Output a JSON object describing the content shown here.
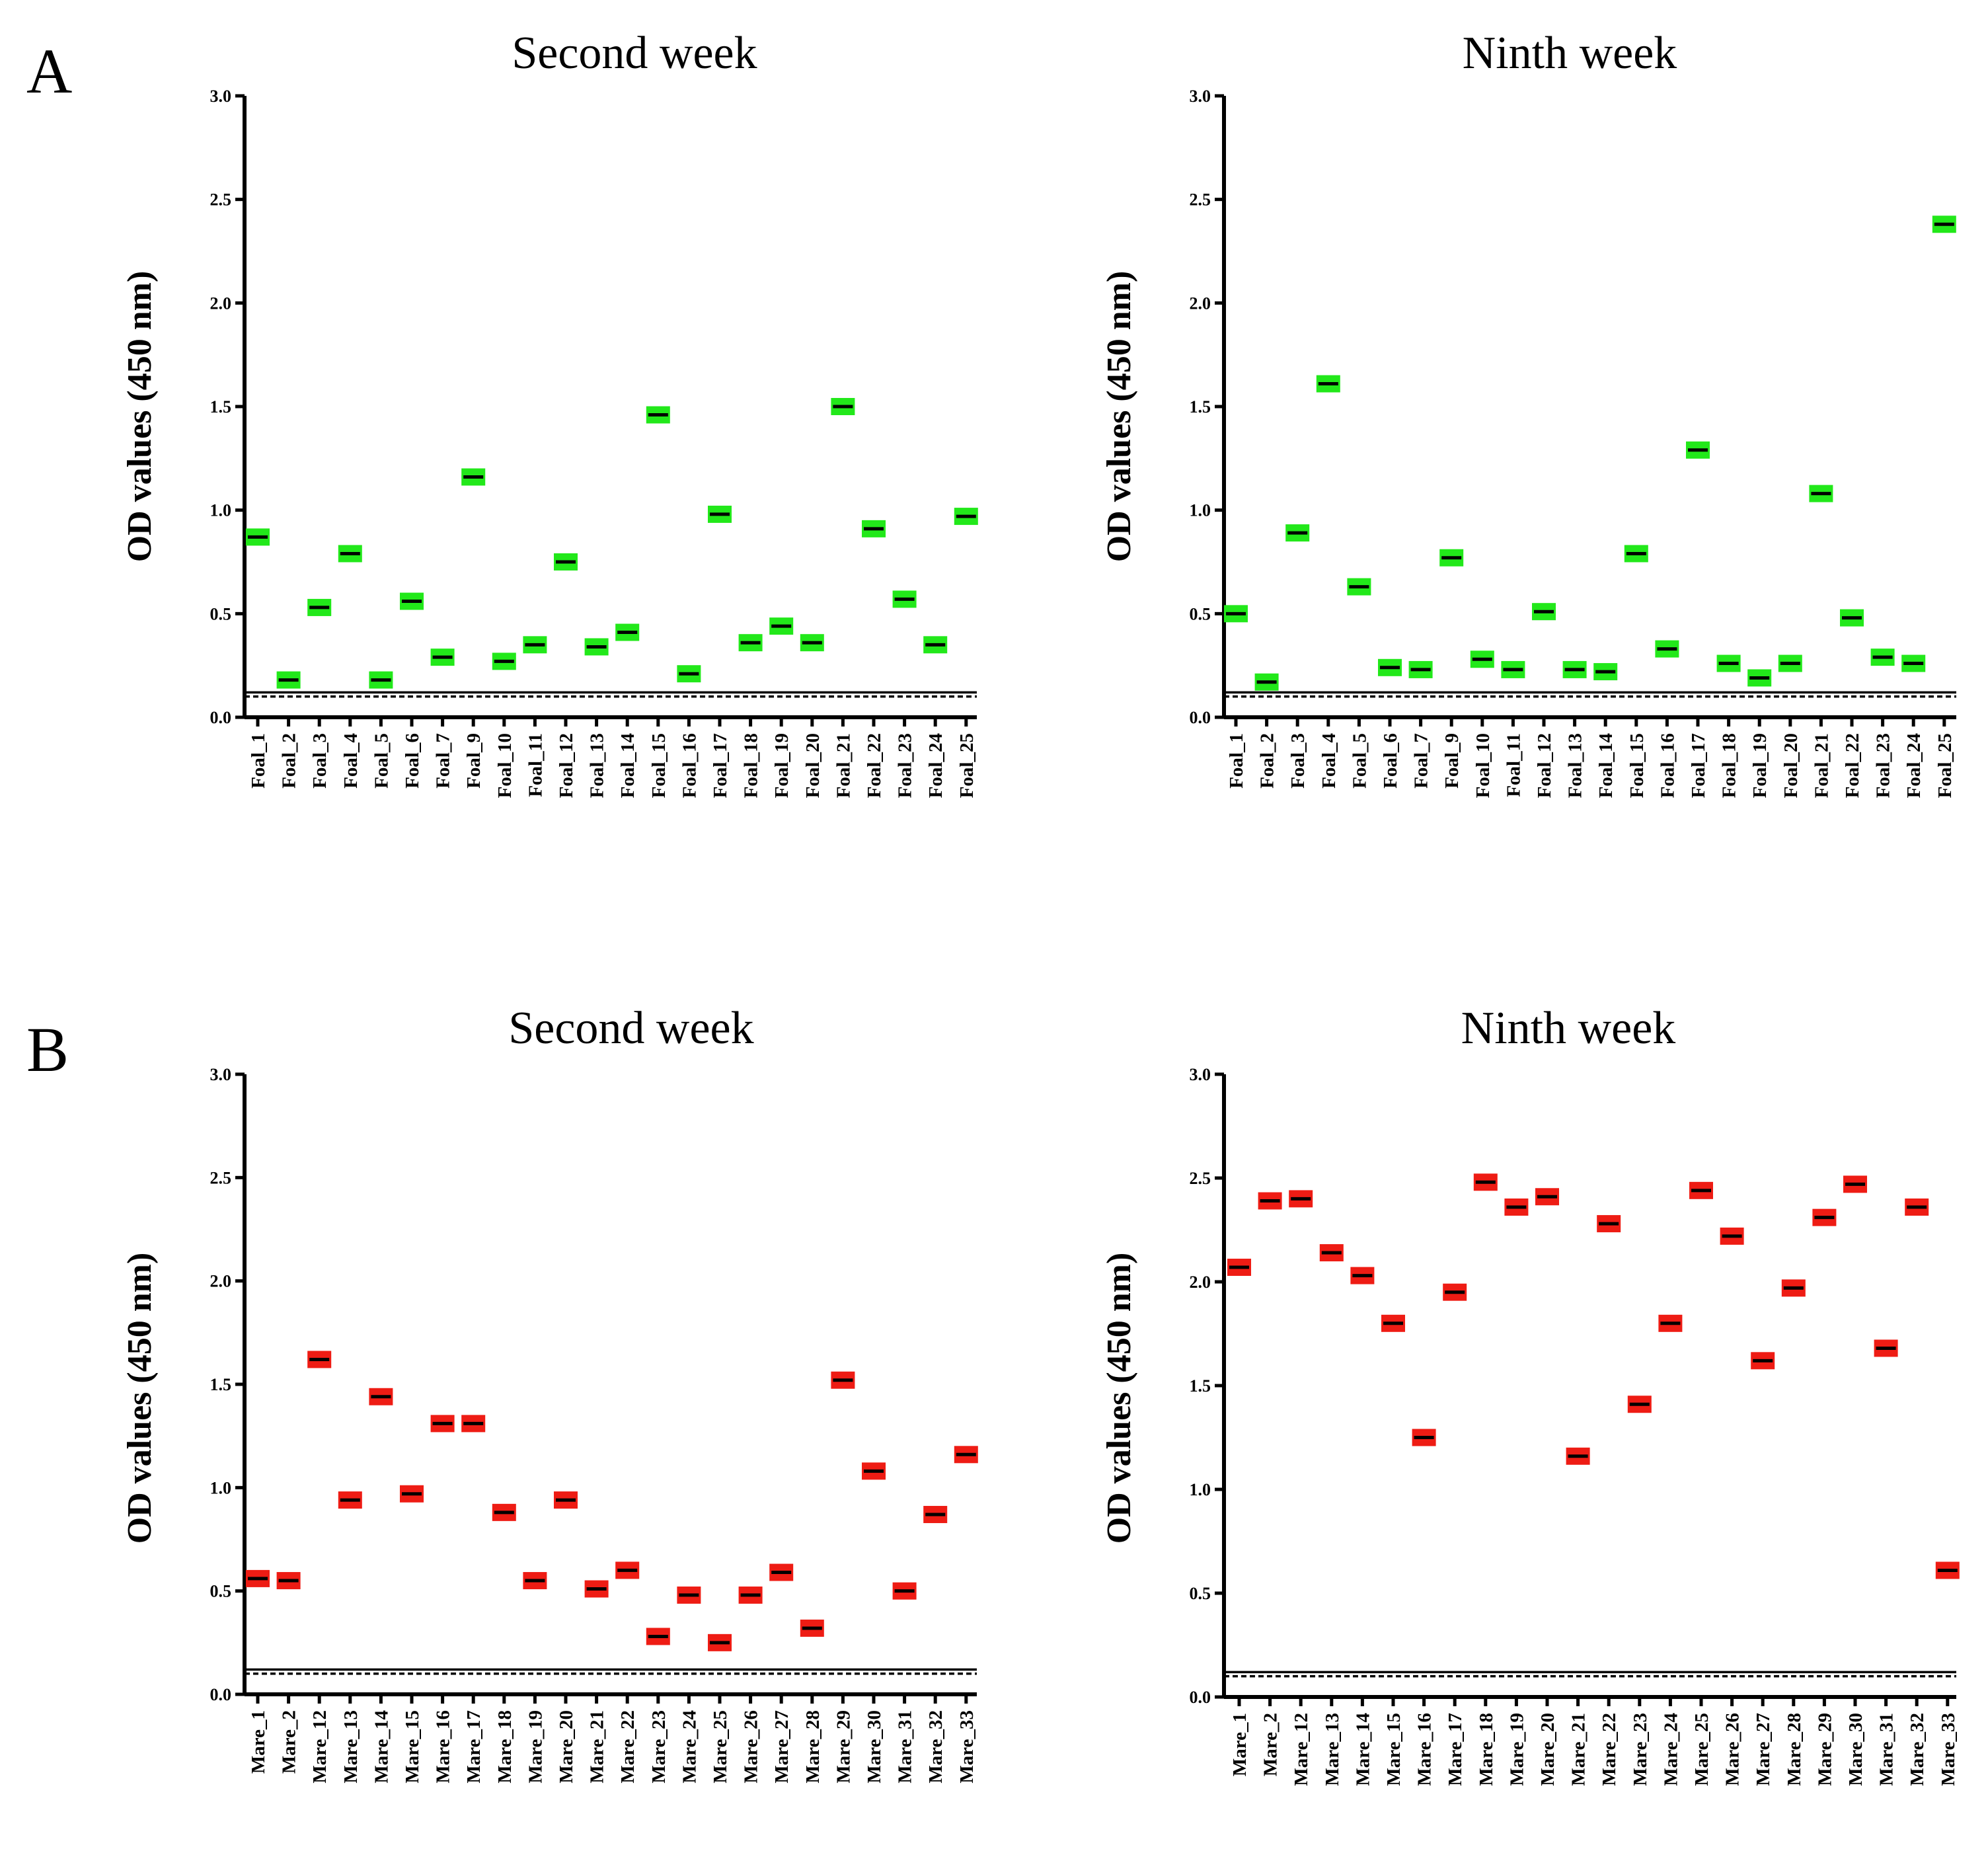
{
  "panel_labels": [
    "A",
    "B"
  ],
  "colors": {
    "foal": "#22e81a",
    "mare": "#ee1c14",
    "mean_line": "#000000",
    "axis": "#000000"
  },
  "chart_data": [
    {
      "type": "scatter",
      "panel": "A",
      "title": "Second week",
      "xlabel": "",
      "ylabel": "OD values (450 nm)",
      "ylim": [
        0,
        3
      ],
      "yticks": [
        "0.0",
        "0.5",
        "1.0",
        "1.5",
        "2.0",
        "2.5",
        "3.0"
      ],
      "cutoff_lines": [
        0.12,
        0.1
      ],
      "categories": [
        "Foal_1",
        "Foal_2",
        "Foal_3",
        "Foal_4",
        "Foal_5",
        "Foal_6",
        "Foal_7",
        "Foal_9",
        "Foal_10",
        "Foal_11",
        "Foal_12",
        "Foal_13",
        "Foal_14",
        "Foal_15",
        "Foal_16",
        "Foal_17",
        "Foal_18",
        "Foal_19",
        "Foal_20",
        "Foal_21",
        "Foal_22",
        "Foal_23",
        "Foal_24",
        "Foal_25"
      ],
      "values": [
        0.87,
        0.18,
        0.53,
        0.79,
        0.18,
        0.56,
        0.29,
        1.16,
        0.27,
        0.35,
        0.75,
        0.34,
        0.41,
        1.46,
        0.21,
        0.98,
        0.36,
        0.44,
        0.36,
        1.5,
        0.91,
        0.57,
        0.35,
        0.97
      ],
      "color_key": "foal"
    },
    {
      "type": "scatter",
      "panel": "A",
      "title": "Ninth week",
      "xlabel": "",
      "ylabel": "OD values (450 nm)",
      "ylim": [
        0,
        3
      ],
      "yticks": [
        "0.0",
        "0.5",
        "1.0",
        "1.5",
        "2.0",
        "2.5",
        "3.0"
      ],
      "cutoff_lines": [
        0.12,
        0.1
      ],
      "categories": [
        "Foal_1",
        "Foal_2",
        "Foal_3",
        "Foal_4",
        "Foal_5",
        "Foal_6",
        "Foal_7",
        "Foal_9",
        "Foal_10",
        "Foal_11",
        "Foal_12",
        "Foal_13",
        "Foal_14",
        "Foal_15",
        "Foal_16",
        "Foal_17",
        "Foal_18",
        "Foal_19",
        "Foal_20",
        "Foal_21",
        "Foal_22",
        "Foal_23",
        "Foal_24",
        "Foal_25"
      ],
      "values": [
        0.5,
        0.17,
        0.89,
        1.61,
        0.63,
        0.24,
        0.23,
        0.77,
        0.28,
        0.23,
        0.51,
        0.23,
        0.22,
        0.79,
        0.33,
        1.29,
        0.26,
        0.19,
        0.26,
        1.08,
        0.48,
        0.29,
        0.26,
        2.38
      ],
      "color_key": "foal"
    },
    {
      "type": "scatter",
      "panel": "B",
      "title": "Second week",
      "xlabel": "",
      "ylabel": "OD values (450 nm)",
      "ylim": [
        0,
        3
      ],
      "yticks": [
        "0.0",
        "0.5",
        "1.0",
        "1.5",
        "2.0",
        "2.5",
        "3.0"
      ],
      "cutoff_lines": [
        0.12,
        0.1
      ],
      "categories": [
        "Mare_1",
        "Mare_2",
        "Mare_12",
        "Mare_13",
        "Mare_14",
        "Mare_15",
        "Mare_16",
        "Mare_17",
        "Mare_18",
        "Mare_19",
        "Mare_20",
        "Mare_21",
        "Mare_22",
        "Mare_23",
        "Mare_24",
        "Mare_25",
        "Mare_26",
        "Mare_27",
        "Mare_28",
        "Mare_29",
        "Mare_30",
        "Mare_31",
        "Mare_32",
        "Mare_33"
      ],
      "values": [
        0.56,
        0.55,
        1.62,
        0.94,
        1.44,
        0.97,
        1.31,
        1.31,
        0.88,
        0.55,
        0.94,
        0.51,
        0.6,
        0.28,
        0.48,
        0.25,
        0.48,
        0.59,
        0.32,
        1.52,
        1.08,
        0.5,
        0.87,
        1.16
      ],
      "color_key": "mare"
    },
    {
      "type": "scatter",
      "panel": "B",
      "title": "Ninth week",
      "xlabel": "",
      "ylabel": "OD values (450 nm)",
      "ylim": [
        0,
        3
      ],
      "yticks": [
        "0.0",
        "0.5",
        "1.0",
        "1.5",
        "2.0",
        "2.5",
        "3.0"
      ],
      "cutoff_lines": [
        0.12,
        0.1
      ],
      "categories": [
        "Mare_1",
        "Mare_2",
        "Mare_12",
        "Mare_13",
        "Mare_14",
        "Mare_15",
        "Mare_16",
        "Mare_17",
        "Mare_18",
        "Mare_19",
        "Mare_20",
        "Mare_21",
        "Mare_22",
        "Mare_23",
        "Mare_24",
        "Mare_25",
        "Mare_26",
        "Mare_27",
        "Mare_28",
        "Mare_29",
        "Mare_30",
        "Mare_31",
        "Mare_32",
        "Mare_33"
      ],
      "values": [
        2.07,
        2.39,
        2.4,
        2.14,
        2.03,
        1.8,
        1.25,
        1.95,
        2.48,
        2.36,
        2.41,
        1.16,
        2.28,
        1.41,
        1.8,
        2.44,
        2.22,
        1.62,
        1.97,
        2.31,
        2.47,
        1.68,
        2.36,
        0.61
      ],
      "color_key": "mare"
    }
  ]
}
